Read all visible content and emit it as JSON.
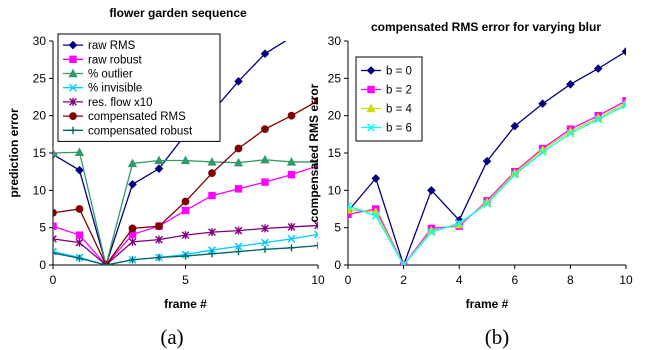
{
  "chart_data": [
    {
      "type": "line",
      "title": "flower garden sequence",
      "xlabel": "frame #",
      "ylabel": "prediction error",
      "xlim": [
        0,
        10
      ],
      "ylim": [
        0,
        30
      ],
      "xticks": [
        0,
        5,
        10
      ],
      "yticks": [
        0,
        5,
        10,
        15,
        20,
        25,
        30
      ],
      "grid": false,
      "legend_position": "top-left",
      "caption": "(a)",
      "x": [
        0,
        1,
        2,
        3,
        4,
        5,
        6,
        7,
        8,
        9,
        10
      ],
      "series": [
        {
          "name": "raw RMS",
          "color": "#000080",
          "marker": "diamond",
          "values": [
            14.8,
            12.7,
            0,
            10.8,
            12.9,
            17.5,
            20.5,
            24.6,
            28.3,
            30.5,
            32.5
          ]
        },
        {
          "name": "raw robust",
          "color": "#ff00ff",
          "marker": "square",
          "values": [
            5.2,
            4.0,
            0,
            4.1,
            5.2,
            7.3,
            9.3,
            10.2,
            11.1,
            12.1,
            13.3
          ]
        },
        {
          "name": "% outlier",
          "color": "#339966",
          "marker": "triangle",
          "values": [
            15.0,
            15.1,
            0,
            13.6,
            14.0,
            14.0,
            13.8,
            13.7,
            14.1,
            13.8,
            13.8
          ]
        },
        {
          "name": "% invisible",
          "color": "#00ccff",
          "marker": "x",
          "values": [
            1.8,
            1.0,
            0,
            0.7,
            1.0,
            1.4,
            2.0,
            2.5,
            3.0,
            3.5,
            4.1
          ]
        },
        {
          "name": "res. flow x10",
          "color": "#800080",
          "marker": "star",
          "values": [
            3.5,
            3.0,
            0,
            3.1,
            3.4,
            4.0,
            4.4,
            4.6,
            4.9,
            5.1,
            5.3
          ]
        },
        {
          "name": "compensated RMS",
          "color": "#800000",
          "marker": "circle",
          "values": [
            7.0,
            7.5,
            0,
            4.9,
            5.2,
            8.5,
            12.3,
            15.6,
            18.2,
            20.0,
            22.0
          ]
        },
        {
          "name": "compensated robust",
          "color": "#006666",
          "marker": "plus",
          "values": [
            1.6,
            0.9,
            0,
            0.7,
            1.0,
            1.2,
            1.5,
            1.8,
            2.1,
            2.3,
            2.6
          ]
        }
      ]
    },
    {
      "type": "line",
      "title": "compensated RMS error for varying blur",
      "xlabel": "frame #",
      "ylabel": "compensated RMS error",
      "xlim": [
        0,
        10
      ],
      "ylim": [
        0,
        30
      ],
      "xticks": [
        0,
        2,
        4,
        6,
        8,
        10
      ],
      "yticks": [
        0,
        5,
        10,
        15,
        20,
        25,
        30
      ],
      "grid": false,
      "legend_position": "top-left",
      "caption": "(b)",
      "x": [
        0,
        1,
        2,
        3,
        4,
        5,
        6,
        7,
        8,
        9,
        10
      ],
      "series": [
        {
          "name": "b = 0",
          "color": "#000080",
          "marker": "diamond",
          "values": [
            7.2,
            11.6,
            0,
            10.0,
            6.0,
            13.9,
            18.6,
            21.6,
            24.2,
            26.3,
            28.6
          ]
        },
        {
          "name": "b = 2",
          "color": "#ff00ff",
          "marker": "square",
          "values": [
            6.8,
            7.5,
            0,
            4.9,
            5.2,
            8.6,
            12.5,
            15.6,
            18.2,
            20.0,
            22.0
          ]
        },
        {
          "name": "b = 4",
          "color": "#ccdd00",
          "marker": "triangle",
          "values": [
            7.4,
            7.1,
            0,
            4.6,
            5.4,
            8.4,
            12.3,
            15.4,
            17.9,
            19.7,
            21.7
          ]
        },
        {
          "name": "b = 6",
          "color": "#00ffff",
          "marker": "x",
          "values": [
            7.9,
            6.6,
            0,
            4.4,
            5.6,
            8.2,
            12.1,
            15.1,
            17.6,
            19.5,
            21.4
          ]
        }
      ]
    }
  ]
}
